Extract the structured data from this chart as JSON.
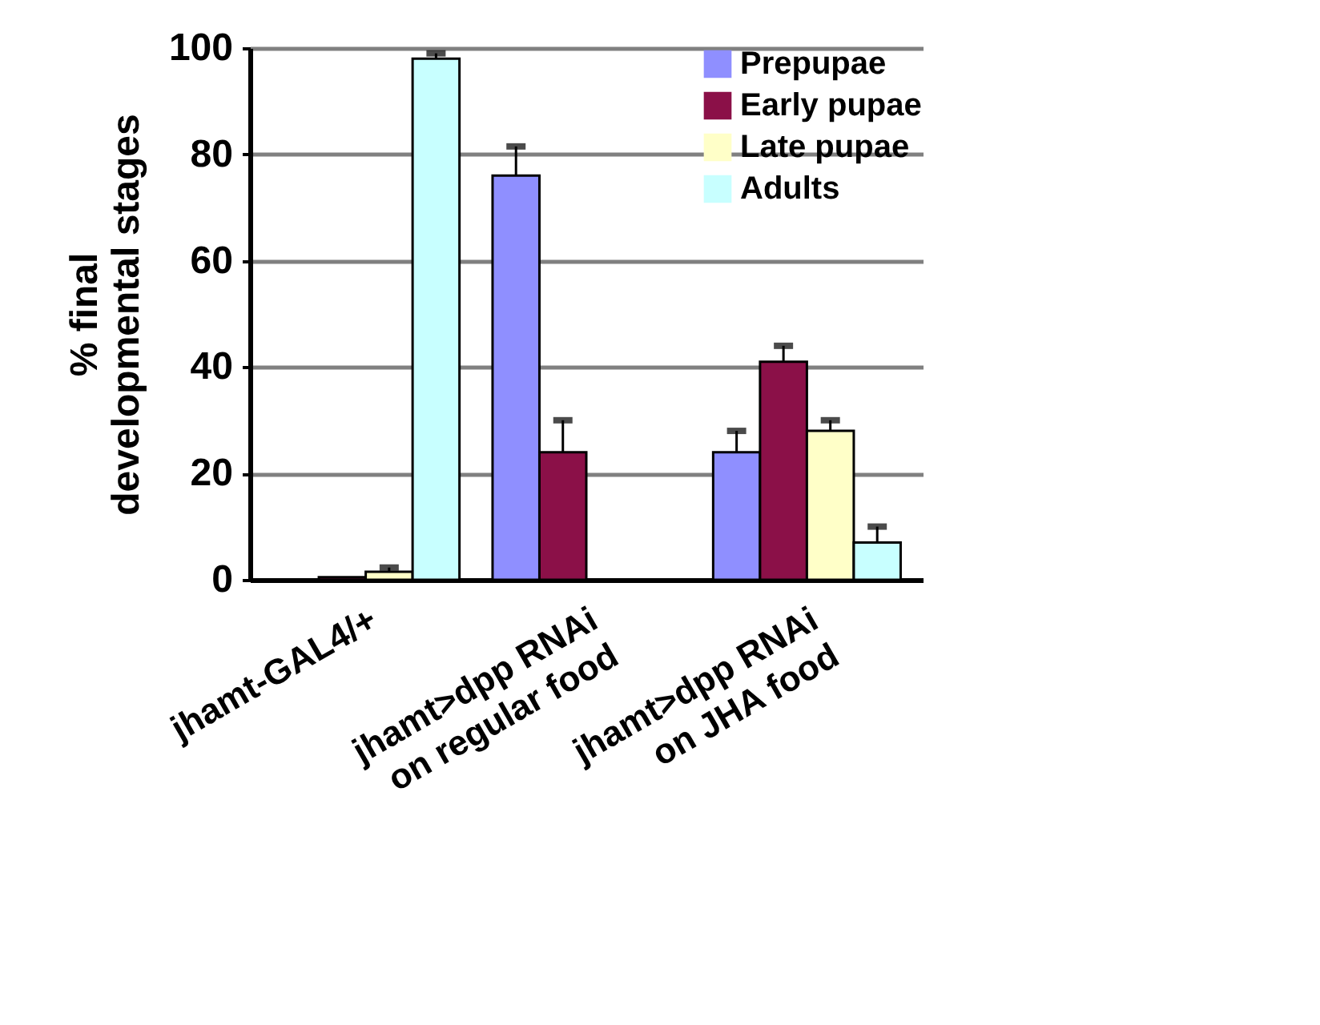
{
  "chart_data": {
    "type": "bar",
    "ylabel": "% final\ndevelopmental stages",
    "categories": [
      "jhamt-GAL4/+",
      "jhamt>dpp RNAi\non regular food",
      "jhamt>dpp RNAi\non JHA food"
    ],
    "series": [
      {
        "name": "Prepupae",
        "color": "#8f8fff",
        "values": [
          0,
          76,
          24
        ],
        "errors": [
          null,
          [
            76,
            81.5
          ],
          [
            24,
            28
          ]
        ]
      },
      {
        "name": "Early pupae",
        "color": "#8b1048",
        "values": [
          0.5,
          24,
          41
        ],
        "errors": [
          null,
          [
            24,
            30
          ],
          [
            41,
            44
          ]
        ]
      },
      {
        "name": "Late pupae",
        "color": "#ffffc8",
        "values": [
          1.5,
          0,
          28
        ],
        "errors": [
          [
            1.5,
            2.3
          ],
          null,
          [
            28,
            30
          ]
        ]
      },
      {
        "name": "Adults",
        "color": "#c8ffff",
        "values": [
          98,
          0,
          7
        ],
        "errors": [
          [
            98,
            99
          ],
          null,
          [
            7,
            10
          ]
        ]
      }
    ],
    "ylim": [
      0,
      100
    ],
    "yticks": [
      0,
      20,
      40,
      60,
      80,
      100
    ],
    "grid": "y",
    "legend": "top right"
  }
}
